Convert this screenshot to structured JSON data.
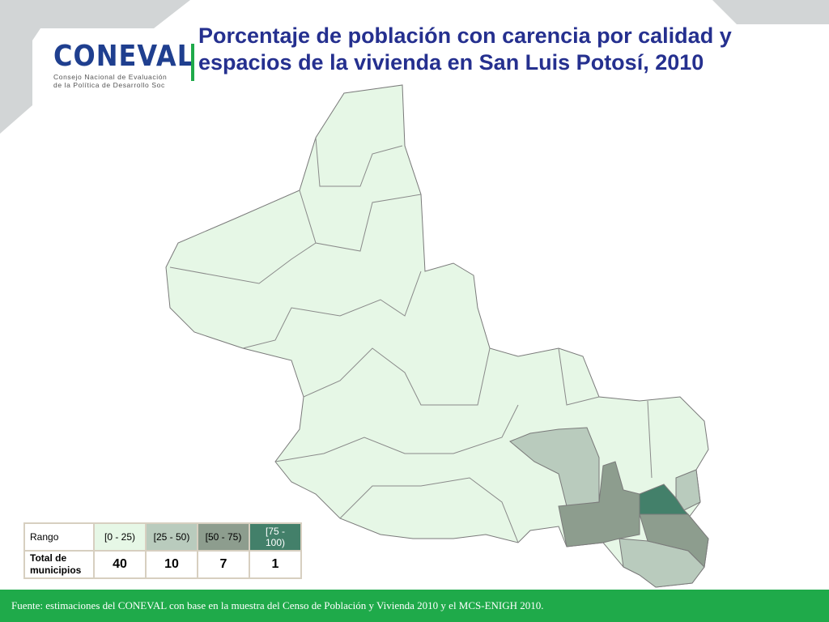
{
  "logo": {
    "word": "CONEVAL",
    "subtitle_line1": "Consejo Nacional de Evaluación",
    "subtitle_line2": "de la Política de Desarrollo Soc"
  },
  "title": "Porcentaje de población con carencia por calidad y espacios de la vivienda en San Luis Potosí, 2010",
  "legend": {
    "header_label": "Rango",
    "row_label": "Total de municipios",
    "ranges": [
      {
        "label": "[0 - 25)",
        "count": "40",
        "color": "#e6f7e6"
      },
      {
        "label": "[25 - 50)",
        "count": "10",
        "color": "#b9cbbd"
      },
      {
        "label": "[50 - 75)",
        "count": "7",
        "color": "#8d9d8e"
      },
      {
        "label": "[75 - 100)",
        "count": "1",
        "color": "#43806a"
      }
    ]
  },
  "colors": {
    "accent": "#1faa4a",
    "title": "#25308f",
    "background_shape": "#d2d5d6",
    "border": "#7a7a7a"
  },
  "footer": "Fuente: estimaciones del CONEVAL con base en la muestra del Censo de Población y Vivienda 2010 y el MCS-ENIGH 2010."
}
